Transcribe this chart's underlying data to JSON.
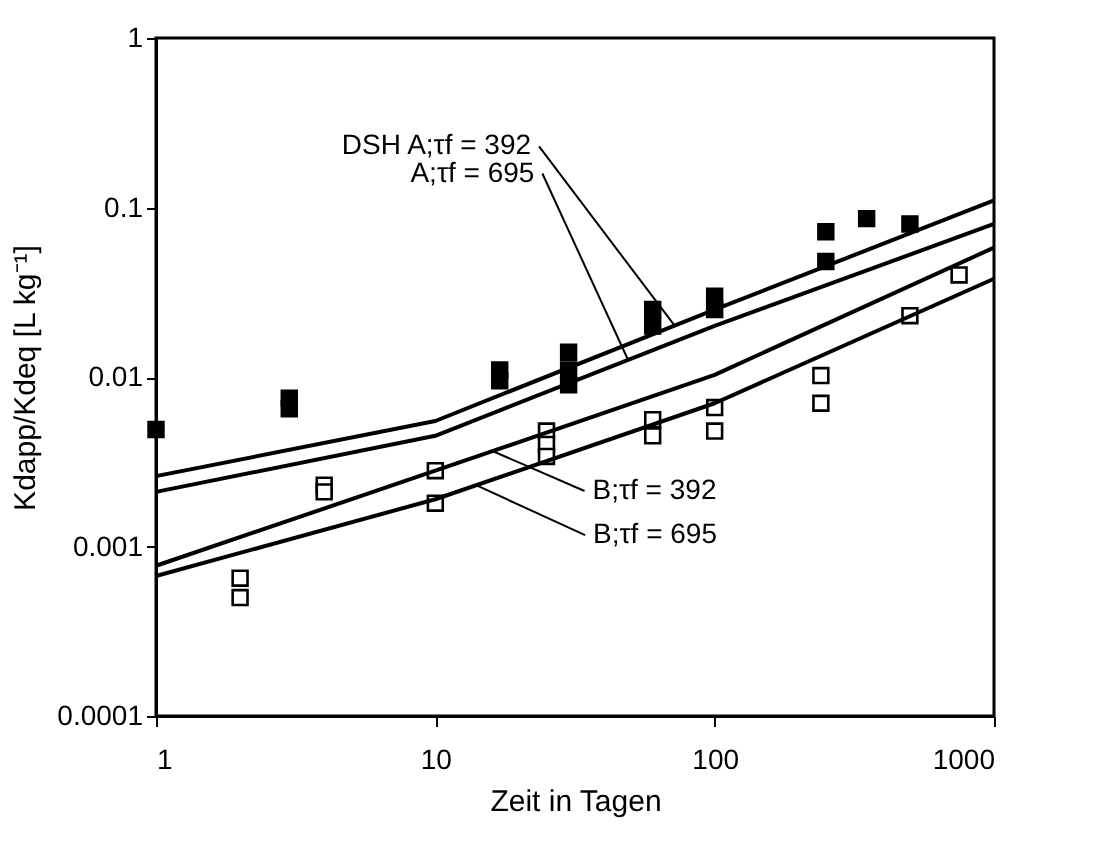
{
  "chart_data": {
    "type": "scatter",
    "xlabel": "Zeit in Tagen",
    "ylabel": "Kdapp/Kdeq [L kg⁻¹]",
    "log": "xy",
    "xlim": [
      1,
      1000
    ],
    "xticks": [
      1,
      10,
      100,
      1000
    ],
    "ylim": [
      0.0001,
      1
    ],
    "yticks": [
      0.0001,
      0.001,
      0.01,
      0.1,
      1
    ],
    "grid": false,
    "series": [
      {
        "color": "#000000",
        "marker": "square",
        "x": [
          1,
          3,
          3,
          17,
          17,
          30,
          30,
          30,
          60,
          60,
          100,
          100,
          250,
          250,
          350,
          500
        ],
        "values": [
          0.0049,
          0.0075,
          0.0065,
          0.011,
          0.0095,
          0.014,
          0.011,
          0.009,
          0.025,
          0.02,
          0.03,
          0.025,
          0.072,
          0.048,
          0.086,
          0.08
        ]
      },
      {
        "color": "#ffffff",
        "marker": "square",
        "x": [
          2,
          2,
          4,
          4,
          10,
          10,
          25,
          25,
          25,
          60,
          60,
          100,
          100,
          240,
          240,
          500,
          750
        ],
        "values": [
          0.00065,
          0.0005,
          0.0023,
          0.0021,
          0.0028,
          0.0018,
          0.0048,
          0.004,
          0.0034,
          0.0056,
          0.0045,
          0.0066,
          0.0048,
          0.0102,
          0.007,
          0.023,
          0.04
        ]
      },
      {
        "type": "line",
        "color": "#000000",
        "marker": "none",
        "line_style": "solid",
        "x": [
          1,
          10,
          100,
          1000
        ],
        "values": [
          0.0026,
          0.0055,
          0.025,
          0.11
        ]
      },
      {
        "type": "line",
        "color": "#000000",
        "marker": "none",
        "line_style": "solid",
        "x": [
          1,
          10,
          100,
          1000
        ],
        "values": [
          0.0021,
          0.0045,
          0.02,
          0.08
        ]
      },
      {
        "type": "line",
        "color": "#000000",
        "marker": "none",
        "line_style": "solid",
        "x": [
          1,
          10,
          100,
          1000
        ],
        "values": [
          0.00077,
          0.0028,
          0.0103,
          0.058
        ]
      },
      {
        "type": "line",
        "color": "#000000",
        "marker": "none",
        "line_style": "solid",
        "x": [
          1,
          10,
          100,
          1000
        ],
        "values": [
          0.00067,
          0.0019,
          0.007,
          0.038
        ]
      }
    ],
    "annotations": [
      {
        "text": "DSH A;τf = 392",
        "x": 72,
        "y": 0.02
      },
      {
        "text": "A;τf = 695",
        "x": 49,
        "y": 0.0126
      },
      {
        "text": "B;τf = 392",
        "x": 16,
        "y": 0.00366
      },
      {
        "text": "B;τf = 695",
        "x": 14,
        "y": 0.0023
      }
    ]
  }
}
